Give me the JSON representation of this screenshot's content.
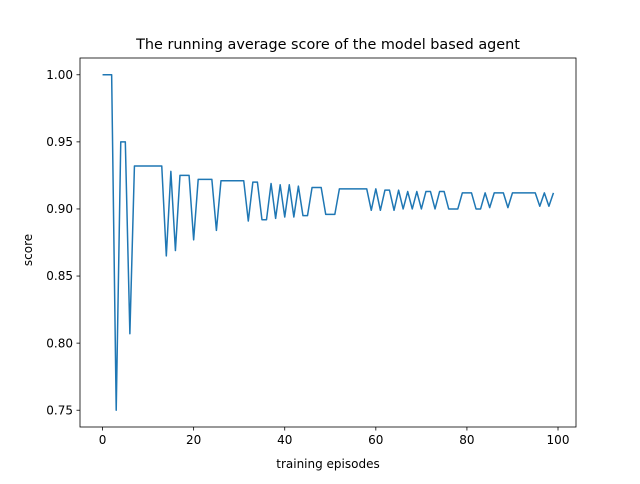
{
  "chart_data": {
    "type": "line",
    "title": "The running average score of the model based agent",
    "xlabel": "training episodes",
    "ylabel": "score",
    "xlim": [
      -4.95,
      103.95
    ],
    "ylim": [
      0.7375,
      1.0125
    ],
    "grid": false,
    "xticks": [
      0,
      20,
      40,
      60,
      80,
      100
    ],
    "xtick_labels": [
      "0",
      "20",
      "40",
      "60",
      "80",
      "100"
    ],
    "yticks": [
      0.75,
      0.8,
      0.85,
      0.9,
      0.95,
      1.0
    ],
    "ytick_labels": [
      "0.75",
      "0.80",
      "0.85",
      "0.90",
      "0.95",
      "1.00"
    ],
    "series": [
      {
        "color": "#1f77b4",
        "x": [
          0,
          1,
          2,
          3,
          4,
          5,
          6,
          7,
          8,
          9,
          10,
          11,
          12,
          13,
          14,
          15,
          16,
          17,
          18,
          19,
          20,
          21,
          22,
          23,
          24,
          25,
          26,
          27,
          28,
          29,
          30,
          31,
          32,
          33,
          34,
          35,
          36,
          37,
          38,
          39,
          40,
          41,
          42,
          43,
          44,
          45,
          46,
          47,
          48,
          49,
          50,
          51,
          52,
          53,
          54,
          55,
          56,
          57,
          58,
          59,
          60,
          61,
          62,
          63,
          64,
          65,
          66,
          67,
          68,
          69,
          70,
          71,
          72,
          73,
          74,
          75,
          76,
          77,
          78,
          79,
          80,
          81,
          82,
          83,
          84,
          85,
          86,
          87,
          88,
          89,
          90,
          91,
          92,
          93,
          94,
          95,
          96,
          97,
          98,
          99
        ],
        "y": [
          1.0,
          1.0,
          1.0,
          0.75,
          0.95,
          0.95,
          0.807,
          0.932,
          0.932,
          0.932,
          0.932,
          0.932,
          0.932,
          0.932,
          0.865,
          0.928,
          0.869,
          0.925,
          0.925,
          0.925,
          0.877,
          0.922,
          0.922,
          0.922,
          0.922,
          0.884,
          0.921,
          0.921,
          0.921,
          0.921,
          0.921,
          0.921,
          0.891,
          0.92,
          0.92,
          0.892,
          0.892,
          0.919,
          0.893,
          0.918,
          0.894,
          0.918,
          0.894,
          0.917,
          0.895,
          0.895,
          0.916,
          0.916,
          0.916,
          0.896,
          0.896,
          0.896,
          0.915,
          0.915,
          0.915,
          0.915,
          0.915,
          0.915,
          0.915,
          0.899,
          0.915,
          0.899,
          0.914,
          0.914,
          0.899,
          0.914,
          0.9,
          0.913,
          0.9,
          0.913,
          0.9,
          0.913,
          0.913,
          0.9,
          0.913,
          0.913,
          0.9,
          0.9,
          0.9,
          0.912,
          0.912,
          0.912,
          0.9,
          0.9,
          0.912,
          0.901,
          0.912,
          0.912,
          0.912,
          0.901,
          0.912,
          0.912,
          0.912,
          0.912,
          0.912,
          0.912,
          0.902,
          0.912,
          0.902,
          0.912
        ]
      }
    ]
  }
}
